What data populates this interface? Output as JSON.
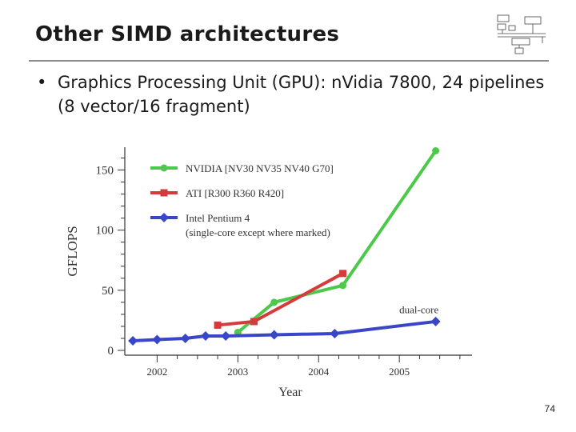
{
  "slide": {
    "title": "Other SIMD architectures",
    "bullet": "Graphics Processing Unit (GPU): nVidia 7800, 24 pipelines (8 vector/16 fragment)",
    "bullet_symbol": "•",
    "page_number": "74",
    "logo": "block-diagram-logo"
  },
  "chart_data": {
    "type": "line",
    "ylabel": "GFLOPS",
    "xlabel": "Year",
    "xlim": [
      2001.6,
      2005.9
    ],
    "ylim": [
      0,
      165
    ],
    "x_ticks": [
      2002,
      2003,
      2004,
      2005
    ],
    "y_ticks": [
      0,
      50,
      100,
      150
    ],
    "legend_position": "top-left",
    "series": [
      {
        "name": "NVIDIA [NV30 NV35 NV40 G70]",
        "color": "#4cc84a",
        "marker": "circle",
        "x": [
          2003.0,
          2003.45,
          2004.3,
          2005.45
        ],
        "y": [
          15,
          40,
          54,
          166
        ]
      },
      {
        "name": "ATI [R300 R360 R420]",
        "color": "#d63b3b",
        "marker": "square",
        "x": [
          2002.75,
          2003.2,
          2004.3
        ],
        "y": [
          21,
          24,
          64
        ]
      },
      {
        "name": "Intel Pentium 4",
        "name_line2": "(single-core except where marked)",
        "color": "#3a46c8",
        "marker": "diamond",
        "x": [
          2001.7,
          2002.0,
          2002.35,
          2002.6,
          2002.85,
          2003.45,
          2004.2,
          2005.45
        ],
        "y": [
          8,
          9,
          10,
          12,
          12,
          13,
          14,
          24
        ]
      }
    ],
    "annotations": [
      {
        "text": "dual-core",
        "x": 2005.0,
        "y": 31
      }
    ]
  }
}
